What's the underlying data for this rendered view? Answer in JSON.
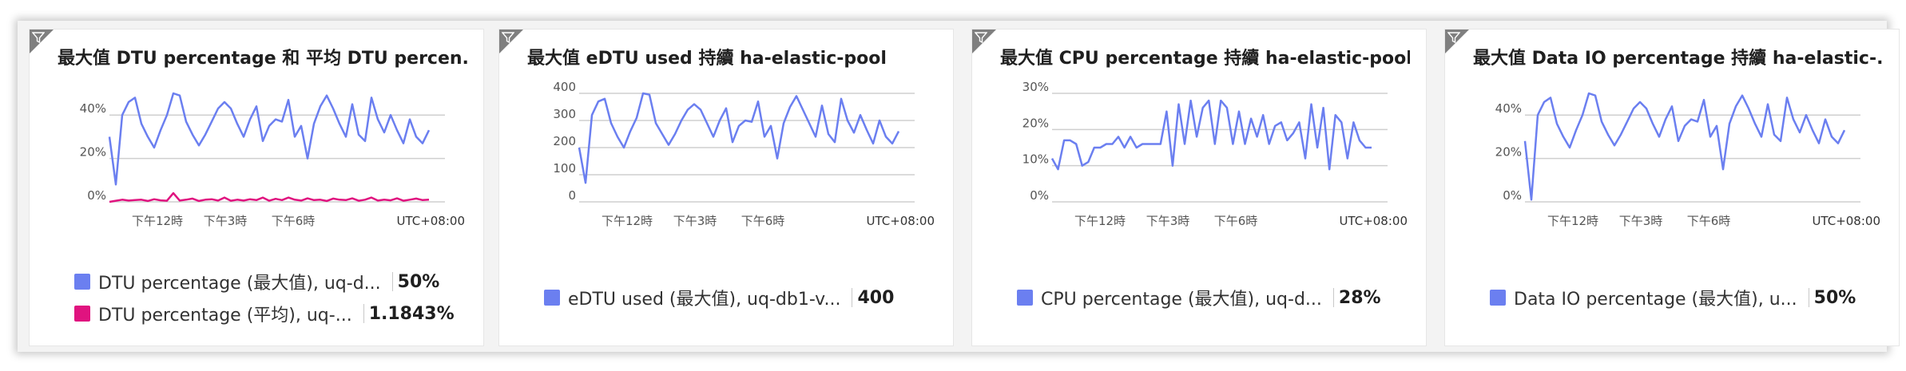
{
  "tiles": [
    {
      "title": "最大值 DTU percentage 和 平均 DTU percen...",
      "chart_data": {
        "type": "line",
        "yticks": [
          "40%",
          "20%",
          "0%"
        ],
        "ylim": [
          0,
          50
        ],
        "xticks": [
          "下午12時",
          "下午3時",
          "下午6時"
        ],
        "timezone": "UTC+08:00",
        "series": [
          {
            "name": "DTU percentage (最大值), uq-d...",
            "color": "#6b7ff0",
            "values": [
              30,
              8,
              40,
              46,
              48,
              36,
              30,
              25,
              33,
              40,
              50,
              49,
              37,
              31,
              26,
              31,
              37,
              43,
              46,
              43,
              36,
              30,
              38,
              44,
              28,
              35,
              38,
              37,
              47,
              30,
              35,
              20,
              36,
              44,
              49,
              43,
              36,
              30,
              45,
              31,
              28,
              48,
              38,
              32,
              40,
              33,
              27,
              38,
              30,
              27,
              33
            ]
          },
          {
            "name": "DTU percentage (平均), uq-...",
            "color": "#e0137f",
            "values": [
              0,
              0.5,
              1,
              0.6,
              0.8,
              1,
              0.4,
              1.2,
              0.7,
              0.5,
              4,
              0.6,
              1,
              1.5,
              0.4,
              1,
              1.2,
              0.6,
              2,
              0.5,
              1,
              0.6,
              1.2,
              0.8,
              2,
              0.5,
              1.4,
              0.8,
              2,
              1,
              0.6,
              1.6,
              0.8,
              1,
              0.4,
              1.5,
              1,
              0.8,
              1.6,
              0.5,
              1,
              2,
              0.6,
              1,
              0.7,
              1.6,
              0.5,
              1,
              1.5,
              0.8,
              1
            ]
          }
        ]
      },
      "legend": [
        {
          "label": "DTU percentage (最大值), uq-d...",
          "value": "50%",
          "color": "#6b7ff0"
        },
        {
          "label": "DTU percentage (平均), uq-...",
          "value": "1.1843%",
          "color": "#e0137f"
        }
      ]
    },
    {
      "title": "最大值 eDTU used 持續 ha-elastic-pool",
      "chart_data": {
        "type": "line",
        "yticks": [
          "400",
          "300",
          "200",
          "100",
          "0"
        ],
        "ylim": [
          0,
          400
        ],
        "xticks": [
          "下午12時",
          "下午3時",
          "下午6時"
        ],
        "timezone": "UTC+08:00",
        "series": [
          {
            "name": "eDTU used (最大值), uq-db1-v...",
            "color": "#6b7ff0",
            "values": [
              200,
              70,
              320,
              370,
              380,
              290,
              240,
              200,
              260,
              310,
              400,
              395,
              290,
              250,
              210,
              250,
              300,
              340,
              360,
              340,
              290,
              240,
              300,
              345,
              220,
              280,
              300,
              295,
              370,
              240,
              280,
              160,
              290,
              350,
              390,
              340,
              290,
              240,
              355,
              250,
              220,
              380,
              300,
              255,
              320,
              265,
              215,
              300,
              240,
              215,
              260
            ]
          }
        ]
      },
      "legend": [
        {
          "label": "eDTU used (最大值), uq-db1-v...",
          "value": "400",
          "color": "#6b7ff0"
        }
      ]
    },
    {
      "title": "最大值 CPU percentage 持續 ha-elastic-pool",
      "chart_data": {
        "type": "line",
        "yticks": [
          "30%",
          "20%",
          "10%",
          "0%"
        ],
        "ylim": [
          0,
          30
        ],
        "xticks": [
          "下午12時",
          "下午3時",
          "下午6時"
        ],
        "timezone": "UTC+08:00",
        "series": [
          {
            "name": "CPU percentage (最大值), uq-d...",
            "color": "#6b7ff0",
            "values": [
              12,
              9,
              17,
              17,
              16,
              10,
              11,
              15,
              15,
              16,
              16,
              18,
              15,
              18,
              15,
              16,
              16,
              16,
              16,
              25,
              10,
              27,
              16,
              28,
              18,
              26,
              28,
              16,
              28,
              26,
              16,
              25,
              16,
              23,
              18,
              24,
              16,
              21,
              22,
              17,
              19,
              22,
              12,
              27,
              15,
              26,
              9,
              24,
              22,
              12,
              22,
              17,
              15,
              15
            ]
          }
        ]
      },
      "legend": [
        {
          "label": "CPU percentage (最大值), uq-d...",
          "value": "28%",
          "color": "#6b7ff0"
        }
      ]
    },
    {
      "title": "最大值 Data IO percentage 持續 ha-elastic-...",
      "chart_data": {
        "type": "line",
        "yticks": [
          "40%",
          "20%",
          "0%"
        ],
        "ylim": [
          0,
          50
        ],
        "xticks": [
          "下午12時",
          "下午3時",
          "下午6時"
        ],
        "timezone": "UTC+08:00",
        "series": [
          {
            "name": "Data IO percentage (最大值), u...",
            "color": "#6b7ff0",
            "values": [
              28,
              1,
              40,
              46,
              48,
              36,
              30,
              25,
              33,
              40,
              50,
              49,
              37,
              31,
              26,
              31,
              37,
              43,
              46,
              43,
              36,
              30,
              38,
              44,
              28,
              35,
              38,
              37,
              47,
              30,
              35,
              15,
              36,
              44,
              49,
              43,
              36,
              30,
              45,
              31,
              28,
              48,
              38,
              32,
              40,
              33,
              27,
              38,
              30,
              27,
              33
            ]
          }
        ]
      },
      "legend": [
        {
          "label": "Data IO percentage (最大值), u...",
          "value": "50%",
          "color": "#6b7ff0"
        }
      ]
    }
  ]
}
